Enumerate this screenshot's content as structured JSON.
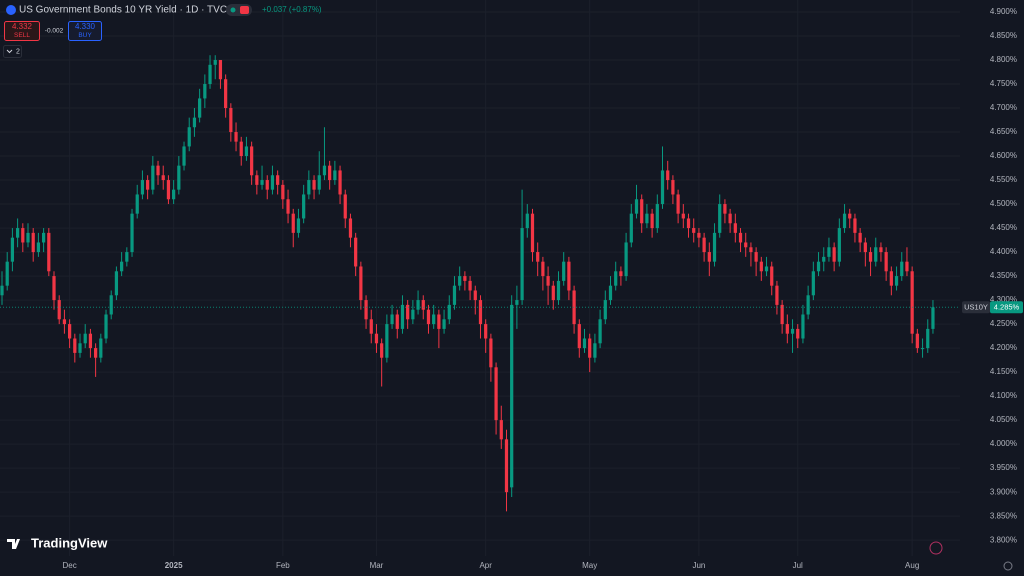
{
  "chart_data": {
    "type": "candlestick",
    "header": {
      "title": "US Government Bonds 10 YR Yield · 1D · TVC",
      "change": "+0.037 (+0.87%)",
      "sell_price": "4.332",
      "sell_label": "SELL",
      "spread": "-0.002",
      "buy_price": "4.330",
      "buy_label": "BUY",
      "indicators": "2"
    },
    "logo": "TradingView",
    "symbol_label": "US10Y",
    "last_price": {
      "value": 4.285,
      "label": "4.285%"
    },
    "up_color": "#089981",
    "down_color": "#f23645",
    "grid": true,
    "xlim": [
      -0.385,
      184.2
    ],
    "xticks": [
      {
        "value": 13,
        "label": "Dec"
      },
      {
        "value": 33,
        "label": "2025"
      },
      {
        "value": 54,
        "label": "Feb"
      },
      {
        "value": 72,
        "label": "Mar"
      },
      {
        "value": 93,
        "label": "Apr"
      },
      {
        "value": 113,
        "label": "May"
      },
      {
        "value": 134,
        "label": "Jun"
      },
      {
        "value": 153,
        "label": "Jul"
      },
      {
        "value": 175,
        "label": "Aug"
      }
    ],
    "ylim": [
      3.767,
      4.925
    ],
    "yticks": [
      {
        "value": 3.8,
        "label": "3.800%"
      },
      {
        "value": 3.85,
        "label": "3.850%"
      },
      {
        "value": 3.9,
        "label": "3.900%"
      },
      {
        "value": 3.95,
        "label": "3.950%"
      },
      {
        "value": 4.0,
        "label": "4.000%"
      },
      {
        "value": 4.05,
        "label": "4.050%"
      },
      {
        "value": 4.1,
        "label": "4.100%"
      },
      {
        "value": 4.15,
        "label": "4.150%"
      },
      {
        "value": 4.2,
        "label": "4.200%"
      },
      {
        "value": 4.25,
        "label": "4.250%"
      },
      {
        "value": 4.3,
        "label": "4.300%"
      },
      {
        "value": 4.35,
        "label": "4.350%"
      },
      {
        "value": 4.4,
        "label": "4.400%"
      },
      {
        "value": 4.45,
        "label": "4.450%"
      },
      {
        "value": 4.5,
        "label": "4.500%"
      },
      {
        "value": 4.55,
        "label": "4.550%"
      },
      {
        "value": 4.6,
        "label": "4.600%"
      },
      {
        "value": 4.65,
        "label": "4.650%"
      },
      {
        "value": 4.7,
        "label": "4.700%"
      },
      {
        "value": 4.75,
        "label": "4.750%"
      },
      {
        "value": 4.8,
        "label": "4.800%"
      },
      {
        "value": 4.85,
        "label": "4.850%"
      },
      {
        "value": 4.9,
        "label": "4.900%"
      }
    ],
    "ohlc": [
      [
        4.31,
        4.36,
        4.29,
        4.33
      ],
      [
        4.33,
        4.4,
        4.32,
        4.38
      ],
      [
        4.38,
        4.45,
        4.36,
        4.43
      ],
      [
        4.43,
        4.47,
        4.41,
        4.45
      ],
      [
        4.45,
        4.46,
        4.4,
        4.42
      ],
      [
        4.42,
        4.46,
        4.41,
        4.44
      ],
      [
        4.44,
        4.45,
        4.38,
        4.4
      ],
      [
        4.4,
        4.44,
        4.39,
        4.42
      ],
      [
        4.42,
        4.45,
        4.4,
        4.44
      ],
      [
        4.44,
        4.45,
        4.35,
        4.36
      ],
      [
        4.35,
        4.36,
        4.28,
        4.3
      ],
      [
        4.3,
        4.31,
        4.25,
        4.26
      ],
      [
        4.26,
        4.28,
        4.23,
        4.25
      ],
      [
        4.25,
        4.26,
        4.2,
        4.22
      ],
      [
        4.22,
        4.23,
        4.17,
        4.19
      ],
      [
        4.19,
        4.23,
        4.18,
        4.21
      ],
      [
        4.21,
        4.25,
        4.2,
        4.23
      ],
      [
        4.23,
        4.24,
        4.18,
        4.2
      ],
      [
        4.2,
        4.21,
        4.14,
        4.18
      ],
      [
        4.18,
        4.23,
        4.17,
        4.22
      ],
      [
        4.22,
        4.28,
        4.21,
        4.27
      ],
      [
        4.27,
        4.32,
        4.26,
        4.31
      ],
      [
        4.31,
        4.37,
        4.3,
        4.36
      ],
      [
        4.36,
        4.4,
        4.35,
        4.38
      ],
      [
        4.38,
        4.41,
        4.37,
        4.4
      ],
      [
        4.4,
        4.49,
        4.39,
        4.48
      ],
      [
        4.48,
        4.54,
        4.47,
        4.52
      ],
      [
        4.52,
        4.57,
        4.51,
        4.55
      ],
      [
        4.55,
        4.56,
        4.51,
        4.53
      ],
      [
        4.53,
        4.6,
        4.52,
        4.58
      ],
      [
        4.58,
        4.59,
        4.54,
        4.56
      ],
      [
        4.56,
        4.58,
        4.53,
        4.55
      ],
      [
        4.55,
        4.56,
        4.5,
        4.51
      ],
      [
        4.51,
        4.55,
        4.5,
        4.53
      ],
      [
        4.53,
        4.6,
        4.52,
        4.58
      ],
      [
        4.58,
        4.63,
        4.57,
        4.62
      ],
      [
        4.62,
        4.68,
        4.61,
        4.66
      ],
      [
        4.66,
        4.7,
        4.64,
        4.68
      ],
      [
        4.68,
        4.74,
        4.67,
        4.72
      ],
      [
        4.72,
        4.77,
        4.7,
        4.75
      ],
      [
        4.75,
        4.81,
        4.74,
        4.79
      ],
      [
        4.79,
        4.81,
        4.76,
        4.8
      ],
      [
        4.8,
        4.8,
        4.74,
        4.76
      ],
      [
        4.76,
        4.77,
        4.68,
        4.7
      ],
      [
        4.7,
        4.71,
        4.63,
        4.65
      ],
      [
        4.65,
        4.67,
        4.61,
        4.63
      ],
      [
        4.63,
        4.64,
        4.58,
        4.6
      ],
      [
        4.6,
        4.64,
        4.59,
        4.62
      ],
      [
        4.62,
        4.63,
        4.54,
        4.56
      ],
      [
        4.56,
        4.57,
        4.52,
        4.54
      ],
      [
        4.54,
        4.58,
        4.53,
        4.55
      ],
      [
        4.55,
        4.56,
        4.51,
        4.53
      ],
      [
        4.53,
        4.58,
        4.52,
        4.56
      ],
      [
        4.56,
        4.57,
        4.52,
        4.54
      ],
      [
        4.54,
        4.55,
        4.49,
        4.51
      ],
      [
        4.51,
        4.53,
        4.46,
        4.48
      ],
      [
        4.48,
        4.49,
        4.41,
        4.44
      ],
      [
        4.44,
        4.49,
        4.43,
        4.47
      ],
      [
        4.47,
        4.54,
        4.46,
        4.52
      ],
      [
        4.52,
        4.57,
        4.51,
        4.55
      ],
      [
        4.55,
        4.56,
        4.51,
        4.53
      ],
      [
        4.53,
        4.61,
        4.52,
        4.56
      ],
      [
        4.56,
        4.66,
        4.55,
        4.58
      ],
      [
        4.58,
        4.59,
        4.53,
        4.55
      ],
      [
        4.55,
        4.59,
        4.54,
        4.57
      ],
      [
        4.57,
        4.58,
        4.5,
        4.52
      ],
      [
        4.52,
        4.53,
        4.45,
        4.47
      ],
      [
        4.47,
        4.48,
        4.41,
        4.43
      ],
      [
        4.43,
        4.44,
        4.35,
        4.37
      ],
      [
        4.37,
        4.38,
        4.28,
        4.3
      ],
      [
        4.3,
        4.31,
        4.24,
        4.26
      ],
      [
        4.26,
        4.28,
        4.21,
        4.23
      ],
      [
        4.23,
        4.25,
        4.19,
        4.21
      ],
      [
        4.21,
        4.22,
        4.12,
        4.18
      ],
      [
        4.18,
        4.27,
        4.17,
        4.25
      ],
      [
        4.25,
        4.29,
        4.24,
        4.27
      ],
      [
        4.27,
        4.28,
        4.22,
        4.24
      ],
      [
        4.24,
        4.31,
        4.23,
        4.29
      ],
      [
        4.29,
        4.3,
        4.24,
        4.26
      ],
      [
        4.26,
        4.3,
        4.25,
        4.28
      ],
      [
        4.28,
        4.32,
        4.27,
        4.3
      ],
      [
        4.3,
        4.31,
        4.26,
        4.28
      ],
      [
        4.28,
        4.29,
        4.23,
        4.25
      ],
      [
        4.25,
        4.29,
        4.24,
        4.27
      ],
      [
        4.27,
        4.28,
        4.2,
        4.24
      ],
      [
        4.24,
        4.28,
        4.23,
        4.26
      ],
      [
        4.26,
        4.31,
        4.25,
        4.29
      ],
      [
        4.29,
        4.35,
        4.28,
        4.33
      ],
      [
        4.33,
        4.37,
        4.32,
        4.35
      ],
      [
        4.35,
        4.36,
        4.32,
        4.34
      ],
      [
        4.34,
        4.35,
        4.3,
        4.32
      ],
      [
        4.32,
        4.33,
        4.27,
        4.3
      ],
      [
        4.3,
        4.31,
        4.22,
        4.25
      ],
      [
        4.25,
        4.26,
        4.19,
        4.22
      ],
      [
        4.22,
        4.23,
        4.13,
        4.16
      ],
      [
        4.16,
        4.17,
        4.02,
        4.05
      ],
      [
        4.05,
        4.08,
        3.99,
        4.01
      ],
      [
        4.01,
        4.03,
        3.86,
        3.9
      ],
      [
        3.91,
        4.31,
        3.89,
        4.29
      ],
      [
        4.29,
        4.33,
        4.24,
        4.3
      ],
      [
        4.3,
        4.53,
        4.29,
        4.45
      ],
      [
        4.45,
        4.5,
        4.43,
        4.48
      ],
      [
        4.48,
        4.49,
        4.38,
        4.4
      ],
      [
        4.4,
        4.42,
        4.35,
        4.38
      ],
      [
        4.38,
        4.39,
        4.32,
        4.35
      ],
      [
        4.35,
        4.37,
        4.29,
        4.33
      ],
      [
        4.33,
        4.34,
        4.28,
        4.3
      ],
      [
        4.3,
        4.36,
        4.29,
        4.34
      ],
      [
        4.34,
        4.4,
        4.33,
        4.38
      ],
      [
        4.38,
        4.39,
        4.3,
        4.32
      ],
      [
        4.32,
        4.33,
        4.23,
        4.25
      ],
      [
        4.25,
        4.26,
        4.18,
        4.2
      ],
      [
        4.2,
        4.24,
        4.19,
        4.22
      ],
      [
        4.22,
        4.23,
        4.15,
        4.18
      ],
      [
        4.18,
        4.23,
        4.17,
        4.21
      ],
      [
        4.21,
        4.28,
        4.2,
        4.26
      ],
      [
        4.26,
        4.32,
        4.25,
        4.3
      ],
      [
        4.3,
        4.35,
        4.29,
        4.33
      ],
      [
        4.33,
        4.38,
        4.32,
        4.36
      ],
      [
        4.36,
        4.37,
        4.33,
        4.35
      ],
      [
        4.35,
        4.44,
        4.34,
        4.42
      ],
      [
        4.42,
        4.5,
        4.41,
        4.48
      ],
      [
        4.48,
        4.54,
        4.47,
        4.51
      ],
      [
        4.51,
        4.52,
        4.44,
        4.46
      ],
      [
        4.46,
        4.5,
        4.45,
        4.48
      ],
      [
        4.48,
        4.49,
        4.43,
        4.45
      ],
      [
        4.45,
        4.52,
        4.44,
        4.5
      ],
      [
        4.5,
        4.62,
        4.49,
        4.57
      ],
      [
        4.57,
        4.59,
        4.53,
        4.55
      ],
      [
        4.55,
        4.56,
        4.5,
        4.52
      ],
      [
        4.52,
        4.53,
        4.46,
        4.48
      ],
      [
        4.48,
        4.5,
        4.45,
        4.47
      ],
      [
        4.47,
        4.48,
        4.43,
        4.45
      ],
      [
        4.45,
        4.47,
        4.42,
        4.44
      ],
      [
        4.44,
        4.45,
        4.41,
        4.43
      ],
      [
        4.43,
        4.44,
        4.38,
        4.4
      ],
      [
        4.4,
        4.42,
        4.35,
        4.38
      ],
      [
        4.38,
        4.46,
        4.37,
        4.44
      ],
      [
        4.44,
        4.52,
        4.43,
        4.5
      ],
      [
        4.5,
        4.51,
        4.46,
        4.48
      ],
      [
        4.48,
        4.49,
        4.44,
        4.46
      ],
      [
        4.46,
        4.48,
        4.42,
        4.44
      ],
      [
        4.44,
        4.45,
        4.4,
        4.42
      ],
      [
        4.42,
        4.44,
        4.39,
        4.41
      ],
      [
        4.41,
        4.42,
        4.37,
        4.4
      ],
      [
        4.4,
        4.41,
        4.35,
        4.38
      ],
      [
        4.38,
        4.39,
        4.34,
        4.36
      ],
      [
        4.36,
        4.39,
        4.35,
        4.37
      ],
      [
        4.37,
        4.38,
        4.31,
        4.33
      ],
      [
        4.33,
        4.34,
        4.27,
        4.29
      ],
      [
        4.29,
        4.3,
        4.23,
        4.25
      ],
      [
        4.25,
        4.27,
        4.21,
        4.23
      ],
      [
        4.23,
        4.26,
        4.19,
        4.24
      ],
      [
        4.24,
        4.25,
        4.2,
        4.22
      ],
      [
        4.22,
        4.29,
        4.21,
        4.27
      ],
      [
        4.27,
        4.33,
        4.26,
        4.31
      ],
      [
        4.31,
        4.38,
        4.3,
        4.36
      ],
      [
        4.36,
        4.4,
        4.35,
        4.38
      ],
      [
        4.38,
        4.41,
        4.36,
        4.39
      ],
      [
        4.39,
        4.43,
        4.38,
        4.41
      ],
      [
        4.41,
        4.42,
        4.36,
        4.38
      ],
      [
        4.38,
        4.47,
        4.37,
        4.45
      ],
      [
        4.45,
        4.5,
        4.44,
        4.48
      ],
      [
        4.48,
        4.49,
        4.45,
        4.47
      ],
      [
        4.47,
        4.48,
        4.42,
        4.44
      ],
      [
        4.44,
        4.45,
        4.4,
        4.42
      ],
      [
        4.42,
        4.43,
        4.37,
        4.4
      ],
      [
        4.4,
        4.41,
        4.35,
        4.38
      ],
      [
        4.38,
        4.43,
        4.37,
        4.41
      ],
      [
        4.41,
        4.42,
        4.38,
        4.4
      ],
      [
        4.4,
        4.41,
        4.34,
        4.36
      ],
      [
        4.36,
        4.37,
        4.31,
        4.33
      ],
      [
        4.33,
        4.37,
        4.32,
        4.35
      ],
      [
        4.35,
        4.4,
        4.34,
        4.38
      ],
      [
        4.38,
        4.41,
        4.35,
        4.36
      ],
      [
        4.36,
        4.37,
        4.21,
        4.23
      ],
      [
        4.23,
        4.24,
        4.19,
        4.2
      ],
      [
        4.2,
        4.22,
        4.18,
        4.2
      ],
      [
        4.2,
        4.26,
        4.19,
        4.24
      ],
      [
        4.24,
        4.3,
        4.23,
        4.285
      ]
    ]
  }
}
